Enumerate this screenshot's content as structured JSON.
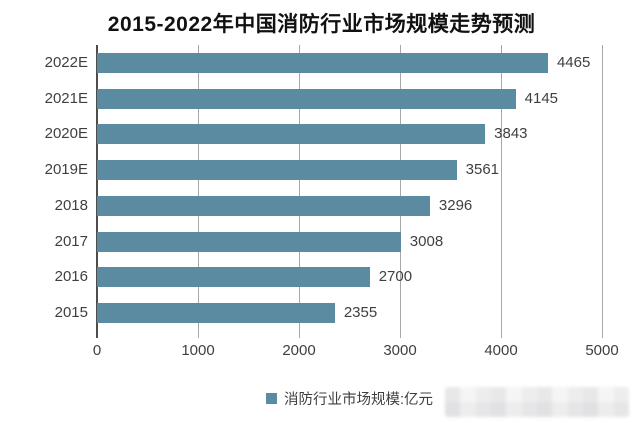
{
  "title": "2015-2022年中国消防行业市场规模走势预测",
  "chart_data": {
    "type": "bar",
    "orientation": "horizontal",
    "title": "2015-2022年中国消防行业市场规模走势预测",
    "categories": [
      "2022E",
      "2021E",
      "2020E",
      "2019E",
      "2018",
      "2017",
      "2016",
      "2015"
    ],
    "values": [
      4465,
      4145,
      3843,
      3561,
      3296,
      3008,
      2700,
      2355
    ],
    "series_name": "消防行业市场规模:亿元",
    "xlabel": "",
    "ylabel": "",
    "xlim": [
      0,
      5000
    ],
    "x_ticks": [
      "0",
      "1000",
      "2000",
      "3000",
      "4000",
      "5000"
    ],
    "grid": true,
    "legend": [
      "消防行业市场规模:亿元"
    ],
    "legend_position": "bottom",
    "data_labels": true
  },
  "colors": {
    "bar": "#5a8ba1",
    "gridline": "#a8a8a8",
    "axis_line": "#4d4d4d",
    "text": "#3f3f3f",
    "title_text": "#111111",
    "background": "#ffffff"
  }
}
